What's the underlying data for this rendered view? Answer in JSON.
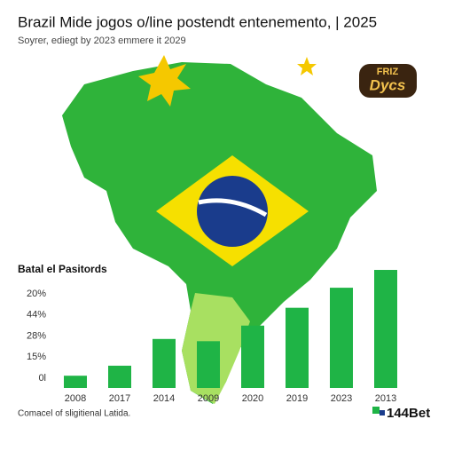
{
  "chart_data": {
    "type": "bar",
    "title": "Brazil Mide jogos o/line postendt entenemento, | 2025",
    "subtitle": "Soyrer, ediegt by 2023 emmere it 2029",
    "chart_label": "Batal el Pasitords",
    "y_axis_labels": [
      "20%",
      "44%",
      "28%",
      "15%",
      "0l"
    ],
    "categories": [
      "2008",
      "2017",
      "2014",
      "2009",
      "2020",
      "2019",
      "2023",
      "2013"
    ],
    "values": [
      5.5,
      10,
      22,
      21,
      28,
      36,
      45,
      53
    ],
    "color": "#1fb446",
    "ylim": [
      0,
      55
    ],
    "footer": "Comacel of sligitienal Latida.",
    "logo": "144Bet",
    "badge": [
      "FRIZ",
      "Dycs"
    ]
  }
}
